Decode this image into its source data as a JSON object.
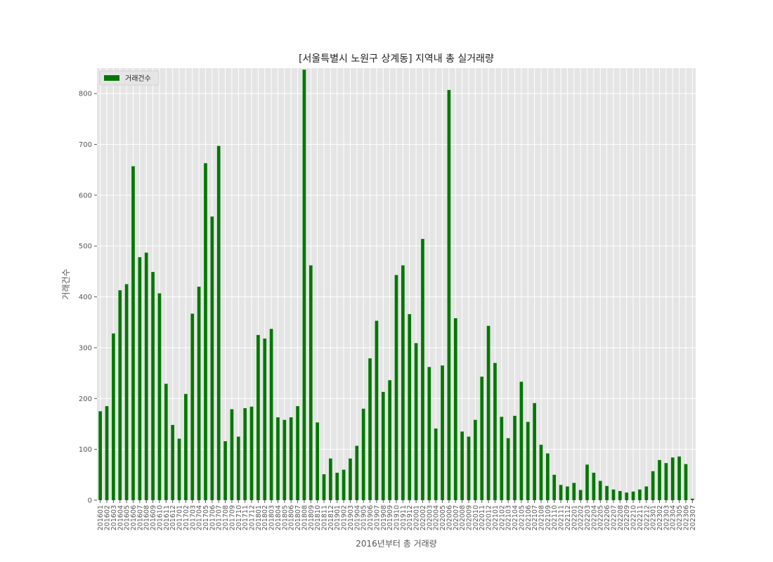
{
  "chart_data": {
    "type": "bar",
    "title": "[서울특별시 노원구 상계동] 지역내 총 실거래량",
    "xlabel": "2016년부터 총 거래량",
    "ylabel": "거래건수",
    "ylim": [
      0,
      850
    ],
    "yticks": [
      0,
      100,
      200,
      300,
      400,
      500,
      600,
      700,
      800
    ],
    "grid": true,
    "legend": {
      "placement": "top-left"
    },
    "series": [
      {
        "name": "거래건수",
        "color": "#007800",
        "values": [
          175,
          185,
          328,
          413,
          425,
          657,
          478,
          487,
          449,
          407,
          229,
          148,
          121,
          209,
          367,
          420,
          663,
          558,
          697,
          116,
          179,
          125,
          181,
          184,
          325,
          318,
          337,
          163,
          158,
          163,
          185,
          847,
          462,
          153,
          51,
          82,
          54,
          60,
          82,
          107,
          180,
          279,
          353,
          213,
          236,
          443,
          462,
          366,
          309,
          514,
          262,
          141,
          265,
          807,
          358,
          135,
          125,
          158,
          243,
          343,
          270,
          164,
          122,
          166,
          233,
          154,
          191,
          109,
          92,
          50,
          30,
          27,
          34,
          20,
          70,
          54,
          38,
          28,
          21,
          18,
          15,
          17,
          21,
          27,
          57,
          79,
          73,
          84,
          86,
          71,
          3
        ]
      }
    ],
    "categories": [
      "201601",
      "201602",
      "201603",
      "201604",
      "201605",
      "201606",
      "201607",
      "201608",
      "201609",
      "201610",
      "201611",
      "201612",
      "201701",
      "201702",
      "201703",
      "201704",
      "201705",
      "201706",
      "201707",
      "201708",
      "201709",
      "201710",
      "201711",
      "201712",
      "201801",
      "201802",
      "201803",
      "201804",
      "201805",
      "201806",
      "201807",
      "201808",
      "201809",
      "201810",
      "201811",
      "201812",
      "201901",
      "201902",
      "201903",
      "201904",
      "201905",
      "201906",
      "201907",
      "201908",
      "201909",
      "201910",
      "201911",
      "201912",
      "202001",
      "202002",
      "202003",
      "202004",
      "202005",
      "202006",
      "202007",
      "202008",
      "202009",
      "202010",
      "202011",
      "202012",
      "202101",
      "202102",
      "202103",
      "202104",
      "202105",
      "202106",
      "202107",
      "202108",
      "202109",
      "202110",
      "202111",
      "202112",
      "202201",
      "202202",
      "202203",
      "202204",
      "202205",
      "202206",
      "202207",
      "202208",
      "202209",
      "202210",
      "202211",
      "202212",
      "202301",
      "202302",
      "202303",
      "202304",
      "202305",
      "202306",
      "202307"
    ]
  }
}
